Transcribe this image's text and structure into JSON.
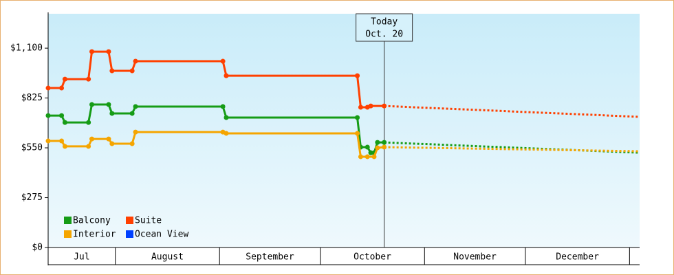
{
  "chart_data": {
    "type": "line",
    "ylim": [
      0,
      1290
    ],
    "yticks": [
      {
        "value": 0,
        "label": "$0"
      },
      {
        "value": 275,
        "label": "$275"
      },
      {
        "value": 550,
        "label": "$550"
      },
      {
        "value": 825,
        "label": "$825"
      },
      {
        "value": 1100,
        "label": "$1,100"
      }
    ],
    "xlim": [
      "07-12",
      "01-04"
    ],
    "xticks": [
      {
        "value": "07-01",
        "label": "Jul"
      },
      {
        "value": "08-01",
        "label": "August"
      },
      {
        "value": "09-01",
        "label": "September"
      },
      {
        "value": "10-01",
        "label": "October"
      },
      {
        "value": "11-01",
        "label": "November"
      },
      {
        "value": "12-01",
        "label": "December"
      }
    ],
    "annotation": {
      "x": "10-20",
      "lines": [
        "Today",
        "Oct. 20"
      ]
    },
    "legend": "bottom-left",
    "series": [
      {
        "name": "Balcony",
        "color": "#169c16",
        "x": [
          "07-12",
          "07-16",
          "07-17",
          "07-24",
          "07-25",
          "07-30",
          "07-31",
          "08-06",
          "08-07",
          "09-02",
          "09-03",
          "10-12",
          "10-13",
          "10-15",
          "10-16",
          "10-17",
          "10-18",
          "10-20"
        ],
        "values": [
          728,
          728,
          690,
          690,
          789,
          789,
          740,
          740,
          778,
          778,
          717,
          717,
          554,
          554,
          523,
          523,
          580,
          580
        ],
        "forecast": {
          "x": [
            "10-20",
            "01-04"
          ],
          "values": [
            580,
            523
          ]
        }
      },
      {
        "name": "Suite",
        "color": "#ff4000",
        "x": [
          "07-12",
          "07-16",
          "07-17",
          "07-24",
          "07-25",
          "07-30",
          "07-31",
          "08-06",
          "08-07",
          "09-02",
          "09-03",
          "10-12",
          "10-13",
          "10-15",
          "10-16",
          "10-20"
        ],
        "values": [
          880,
          880,
          929,
          929,
          1081,
          1081,
          975,
          975,
          1028,
          1028,
          948,
          948,
          774,
          774,
          781,
          781
        ],
        "forecast": {
          "x": [
            "10-20",
            "01-04"
          ],
          "values": [
            781,
            721
          ]
        }
      },
      {
        "name": "Interior",
        "color": "#f5a500",
        "x": [
          "07-12",
          "07-16",
          "07-17",
          "07-24",
          "07-25",
          "07-30",
          "07-31",
          "08-06",
          "08-07",
          "09-02",
          "09-03",
          "10-12",
          "10-13",
          "10-15",
          "10-17",
          "10-18",
          "10-20"
        ],
        "values": [
          588,
          588,
          558,
          558,
          599,
          599,
          573,
          573,
          637,
          637,
          630,
          630,
          501,
          501,
          501,
          550,
          554
        ],
        "forecast": {
          "x": [
            "10-20",
            "01-04"
          ],
          "values": [
            554,
            531
          ]
        }
      },
      {
        "name": "Ocean View",
        "color": "#0040ff",
        "x": [],
        "values": []
      }
    ]
  }
}
